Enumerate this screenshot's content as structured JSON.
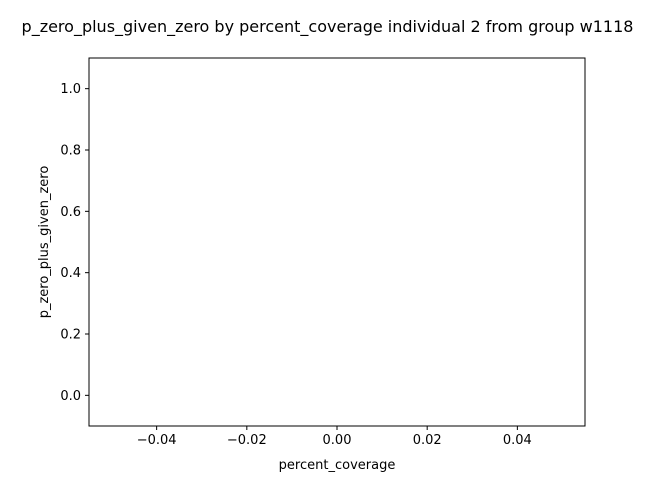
{
  "chart_data": {
    "type": "scatter",
    "title": "p_zero_plus_given_zero by percent_coverage individual 2 from group w1118",
    "xlabel": "percent_coverage",
    "ylabel": "p_zero_plus_given_zero",
    "xlim": [
      -0.055,
      0.055
    ],
    "ylim": [
      -0.1,
      1.1
    ],
    "xticks": [
      -0.04,
      -0.02,
      0.0,
      0.02,
      0.04
    ],
    "xtick_labels": [
      "−0.04",
      "−0.02",
      "0.00",
      "0.02",
      "0.04"
    ],
    "yticks": [
      0.0,
      0.2,
      0.4,
      0.6,
      0.8,
      1.0
    ],
    "ytick_labels": [
      "0.0",
      "0.2",
      "0.4",
      "0.6",
      "0.8",
      "1.0"
    ],
    "series": [],
    "grid": false,
    "colors": {
      "axes": "#000000",
      "background": "#ffffff"
    }
  }
}
